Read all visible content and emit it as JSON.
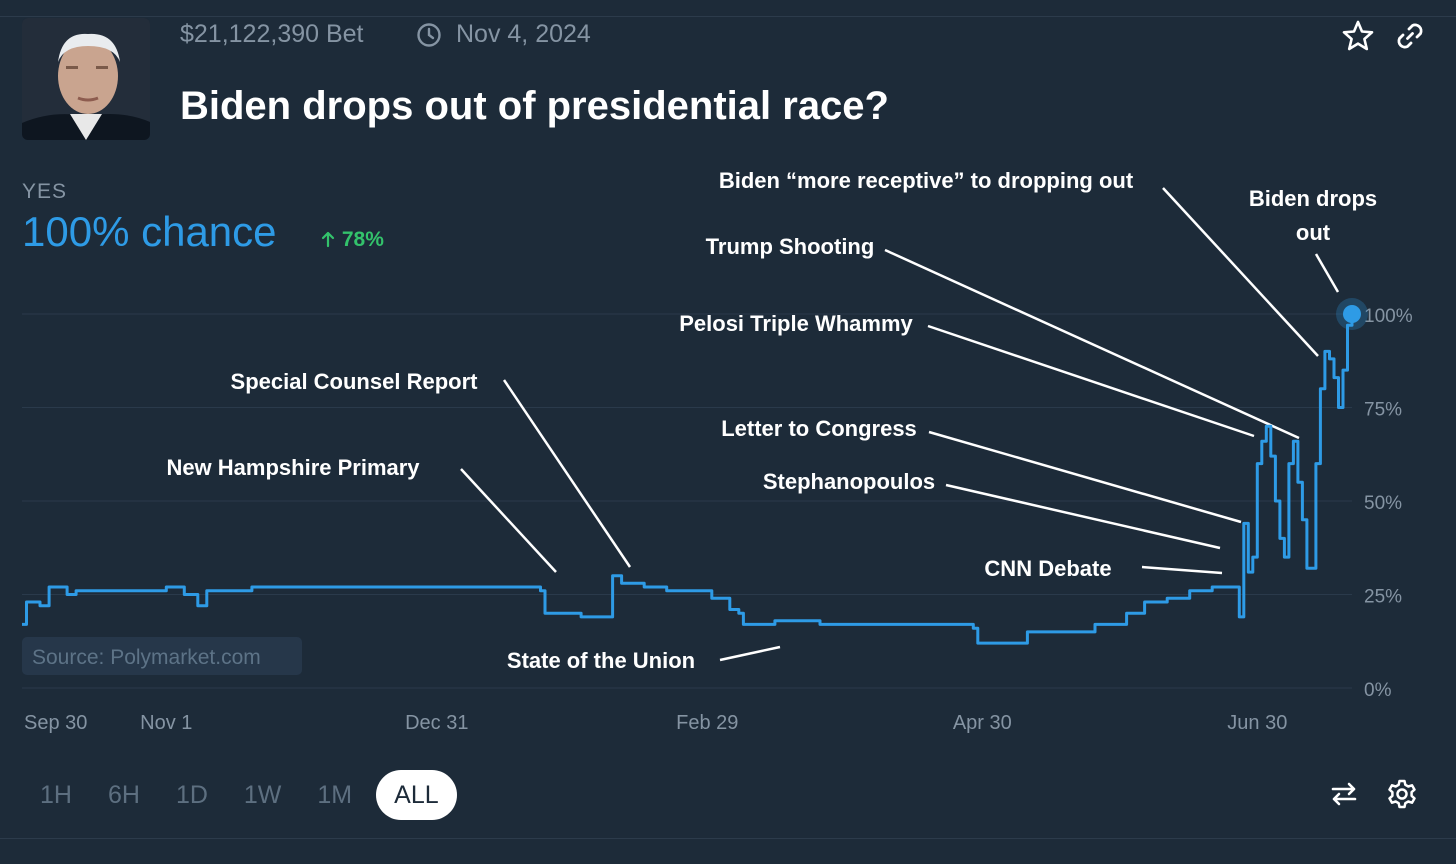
{
  "market": {
    "volume": "$21,122,390 Bet",
    "end_date": "Nov 4, 2024",
    "title": "Biden drops out of presidential race?",
    "outcome_label": "YES",
    "chance": "100% chance",
    "change": "78%"
  },
  "icons": {
    "clock": "clock-icon",
    "star": "star-icon",
    "link": "link-icon",
    "arrow_up": "arrow-up-icon",
    "swap": "swap-icon",
    "settings": "gear-icon"
  },
  "colors": {
    "background": "#1d2b39",
    "line": "#2e9be6",
    "up": "#33c26b",
    "muted": "#8594a3"
  },
  "source": "Source: Polymarket.com",
  "ranges": [
    "1H",
    "6H",
    "1D",
    "1W",
    "1M",
    "ALL"
  ],
  "selected_range": "ALL",
  "chart_data": {
    "type": "line",
    "title": "",
    "xlabel": "",
    "ylabel": "",
    "x_ticks": [
      "Sep 30",
      "Nov 1",
      "Dec 31",
      "Feb 29",
      "Apr 30",
      "Jun 30"
    ],
    "y_ticks": [
      "0%",
      "25%",
      "50%",
      "75%",
      "100%"
    ],
    "ylim": [
      0,
      100
    ],
    "x_range": [
      "2023-09-30",
      "2024-07-21"
    ],
    "grid": true,
    "series": [
      {
        "x": [
          "2023-09-30",
          "2023-10-01",
          "2023-10-04",
          "2023-10-06",
          "2023-10-10",
          "2023-10-12",
          "2023-10-20",
          "2023-11-01",
          "2023-11-05",
          "2023-11-08",
          "2023-11-10",
          "2023-11-13",
          "2023-11-20",
          "2023-12-01",
          "2023-12-10",
          "2023-12-20",
          "2023-12-31",
          "2024-01-10",
          "2024-01-20",
          "2024-01-23",
          "2024-01-24",
          "2024-02-01",
          "2024-02-07",
          "2024-02-08",
          "2024-02-10",
          "2024-02-15",
          "2024-02-20",
          "2024-02-25",
          "2024-03-01",
          "2024-03-05",
          "2024-03-07",
          "2024-03-08",
          "2024-03-15",
          "2024-03-25",
          "2024-04-01",
          "2024-04-15",
          "2024-04-28",
          "2024-04-29",
          "2024-05-10",
          "2024-05-20",
          "2024-05-25",
          "2024-06-01",
          "2024-06-05",
          "2024-06-10",
          "2024-06-15",
          "2024-06-20",
          "2024-06-26",
          "2024-06-27",
          "2024-06-28",
          "2024-06-29",
          "2024-06-30",
          "2024-07-01",
          "2024-07-02",
          "2024-07-03",
          "2024-07-04",
          "2024-07-05",
          "2024-07-06",
          "2024-07-07",
          "2024-07-08",
          "2024-07-09",
          "2024-07-10",
          "2024-07-11",
          "2024-07-12",
          "2024-07-13",
          "2024-07-14",
          "2024-07-15",
          "2024-07-16",
          "2024-07-17",
          "2024-07-18",
          "2024-07-19",
          "2024-07-20",
          "2024-07-21"
        ],
        "y": [
          17,
          23,
          22,
          27,
          25,
          26,
          26,
          27,
          25,
          22,
          26,
          26,
          27,
          27,
          27,
          27,
          27,
          27,
          27,
          26,
          20,
          19,
          19,
          30,
          28,
          27,
          26,
          26,
          24,
          21,
          20,
          17,
          18,
          17,
          17,
          17,
          16,
          12,
          15,
          15,
          17,
          20,
          23,
          24,
          26,
          27,
          19,
          44,
          31,
          35,
          60,
          66,
          70,
          62,
          50,
          40,
          35,
          60,
          66,
          55,
          45,
          32,
          32,
          60,
          80,
          90,
          88,
          83,
          75,
          85,
          97,
          100
        ]
      }
    ],
    "annotations": [
      "Biden “more receptive” to dropping out",
      "Biden drops out",
      "Trump Shooting",
      "Pelosi Triple Whammy",
      "Special Counsel Report",
      "Letter to Congress",
      "New Hampshire Primary",
      "Stephanopoulos",
      "CNN Debate",
      "State of the Union"
    ]
  }
}
